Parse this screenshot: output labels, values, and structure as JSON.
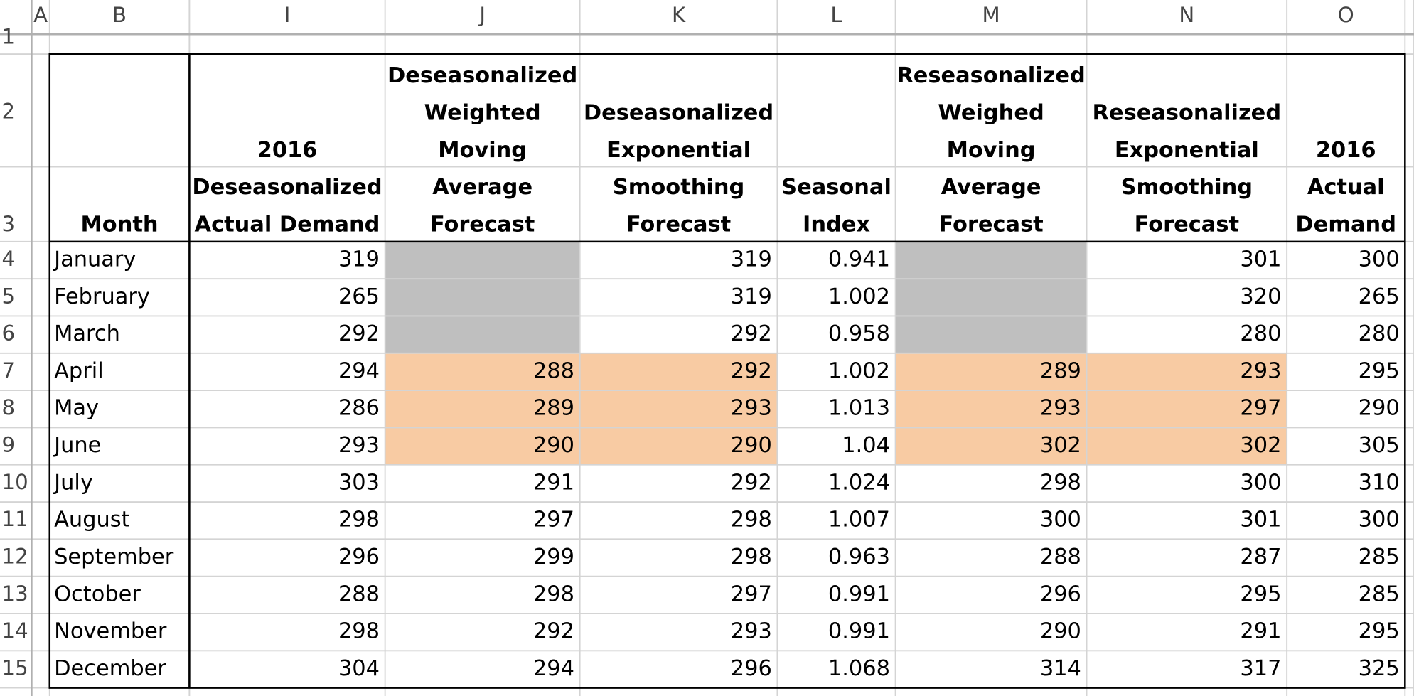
{
  "column_letters": [
    "A",
    "B",
    "I",
    "J",
    "K",
    "L",
    "M",
    "N",
    "O"
  ],
  "row_numbers": [
    "1",
    "2",
    "3",
    "4",
    "5",
    "6",
    "7",
    "8",
    "9",
    "10",
    "11",
    "12",
    "13",
    "14",
    "15"
  ],
  "table": {
    "headers": [
      [
        "Month"
      ],
      [
        "2016",
        "Deseasonalized",
        "Actual Demand"
      ],
      [
        "Deseasonalized",
        "Weighted",
        "Moving",
        "Average",
        "Forecast"
      ],
      [
        "Deseasonalized",
        "Exponential",
        "Smoothing",
        "Forecast"
      ],
      [
        "Seasonal",
        "Index"
      ],
      [
        "Reseasonalized",
        "Weighed",
        "Moving",
        "Average",
        "Forecast"
      ],
      [
        "Reseasonalized",
        "Exponential",
        "Smoothing",
        "Forecast"
      ],
      [
        "2016",
        "Actual",
        "Demand"
      ]
    ],
    "rows": [
      [
        "January",
        319,
        null,
        319,
        0.941,
        null,
        301,
        300
      ],
      [
        "February",
        265,
        null,
        319,
        1.002,
        null,
        320,
        265
      ],
      [
        "March",
        292,
        null,
        292,
        0.958,
        null,
        280,
        280
      ],
      [
        "April",
        294,
        288,
        292,
        1.002,
        289,
        293,
        295
      ],
      [
        "May",
        286,
        289,
        293,
        1.013,
        293,
        297,
        290
      ],
      [
        "June",
        293,
        290,
        290,
        1.04,
        302,
        302,
        305
      ],
      [
        "July",
        303,
        291,
        292,
        1.024,
        298,
        300,
        310
      ],
      [
        "August",
        298,
        297,
        298,
        1.007,
        300,
        301,
        300
      ],
      [
        "September",
        296,
        299,
        298,
        0.963,
        288,
        287,
        285
      ],
      [
        "October",
        288,
        298,
        297,
        0.991,
        296,
        295,
        285
      ],
      [
        "November",
        298,
        292,
        293,
        0.991,
        290,
        291,
        295
      ],
      [
        "December",
        304,
        294,
        296,
        1.068,
        314,
        317,
        325
      ]
    ]
  }
}
